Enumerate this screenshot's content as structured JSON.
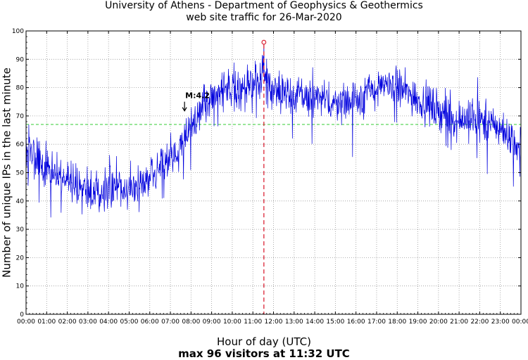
{
  "chart_data": {
    "type": "line",
    "title": "University of Athens - Department of Geophysics & Geothermics",
    "subtitle": "web site traffic for 26-Mar-2020",
    "xlabel": "Hour of day (UTC)",
    "ylabel": "Number of unique IPs in the last minute",
    "footnote": "max 96 visitors at 11:32 UTC",
    "xlim": [
      0,
      24
    ],
    "ylim": [
      0,
      100
    ],
    "x_ticks": [
      "00:00",
      "01:00",
      "02:00",
      "03:00",
      "04:00",
      "05:00",
      "06:00",
      "07:00",
      "08:00",
      "09:00",
      "10:00",
      "11:00",
      "12:00",
      "13:00",
      "14:00",
      "15:00",
      "16:00",
      "17:00",
      "18:00",
      "19:00",
      "20:00",
      "21:00",
      "22:00",
      "23:00",
      "00:00"
    ],
    "y_ticks": [
      0,
      10,
      20,
      30,
      40,
      50,
      60,
      70,
      80,
      90,
      100
    ],
    "grid": true,
    "reference_line": {
      "y": 67,
      "color": "#33cc33",
      "style": "dashed"
    },
    "max_marker": {
      "hour": 11.533,
      "value": 96,
      "color": "#dd3344"
    },
    "annotation": {
      "text": "M:4.2",
      "hour": 7.72,
      "value": 78
    },
    "series": [
      {
        "name": "unique IPs per minute",
        "color": "#0000dd",
        "hours": [
          0,
          0.25,
          0.5,
          1,
          1.5,
          2,
          2.5,
          3,
          3.5,
          4,
          4.5,
          5,
          5.5,
          6,
          6.5,
          7,
          7.5,
          8,
          8.5,
          9,
          9.5,
          10,
          10.5,
          11,
          11.5,
          12,
          12.5,
          13,
          13.5,
          14,
          14.5,
          15,
          15.5,
          16,
          16.5,
          17,
          17.5,
          18,
          18.5,
          19,
          19.5,
          20,
          20.5,
          21,
          21.5,
          22,
          22.5,
          23,
          23.5,
          24
        ],
        "values": [
          59,
          58,
          54,
          51,
          49,
          48,
          46,
          43,
          44,
          45,
          45,
          44,
          45,
          48,
          51,
          55,
          59,
          66,
          72,
          77,
          79,
          81,
          79,
          80,
          85,
          80,
          79,
          77,
          77,
          76,
          76,
          75,
          75,
          76,
          78,
          79,
          81,
          80,
          78,
          76,
          74,
          72,
          70,
          69,
          69,
          68,
          67,
          66,
          62,
          58
        ]
      }
    ]
  }
}
